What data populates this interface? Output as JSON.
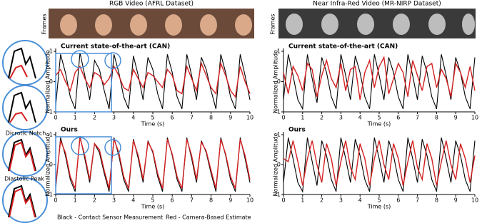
{
  "panels": [
    {
      "title": "RGB Video (AFRL Dataset)",
      "frames_label": "Frames"
    },
    {
      "title": "Near Infra-Red Video (MR-NIRP Dataset)",
      "frames_label": "Frames"
    }
  ],
  "annotations": [
    "Dicrotic Notch",
    "Diastolic Peak"
  ],
  "chart_data": [
    {
      "type": "line",
      "title": "Current state-of-the-art (CAN)",
      "xlabel": "Time (s)",
      "ylabel": "Normalized Amplitude",
      "x": [
        0,
        0.25,
        0.5,
        0.75,
        1,
        1.25,
        1.5,
        1.75,
        2,
        2.25,
        2.5,
        2.75,
        3,
        3.25,
        3.5,
        3.75,
        4,
        4.25,
        4.5,
        4.75,
        5,
        5.25,
        5.5,
        5.75,
        6,
        6.25,
        6.5,
        6.75,
        7,
        7.25,
        7.5,
        7.75,
        8,
        8.25,
        8.5,
        8.75,
        9,
        9.25,
        9.5,
        9.75,
        10
      ],
      "xlim": [
        0,
        10
      ],
      "xticks": [
        0,
        1,
        2,
        3,
        4,
        5,
        6,
        7,
        8,
        9,
        10
      ],
      "ylim": [
        -1,
        1
      ],
      "yticks": [
        -1,
        0,
        1
      ],
      "series": [
        {
          "name": "Black - Contact Sensor Measurement",
          "color": "#000000",
          "values": [
            -0.8,
            0.9,
            0.3,
            -0.5,
            -0.9,
            0.95,
            0.2,
            -0.6,
            0.7,
            0.4,
            -0.3,
            -0.9,
            0.9,
            0.3,
            -0.5,
            -0.9,
            0.85,
            0.2,
            -0.6,
            0.8,
            0.4,
            -0.4,
            -0.9,
            0.9,
            0.3,
            -0.5,
            -0.9,
            0.9,
            0.2,
            -0.6,
            0.8,
            0.4,
            -0.3,
            -0.9,
            0.9,
            0.3,
            -0.5,
            -0.9,
            0.9,
            0.2,
            -0.6
          ]
        },
        {
          "name": "Red - Camera-Based Estimate",
          "color": "#d42020",
          "values": [
            0.2,
            0.4,
            0.0,
            -0.3,
            0.3,
            0.5,
            0.1,
            -0.2,
            0.3,
            0.2,
            -0.1,
            0.1,
            0.5,
            0.2,
            -0.2,
            -0.3,
            0.4,
            0.1,
            -0.2,
            0.3,
            0.2,
            0.0,
            -0.2,
            0.4,
            0.2,
            -0.3,
            -0.4,
            0.5,
            0.1,
            -0.3,
            0.6,
            0.2,
            -0.2,
            -0.4,
            0.6,
            0.2,
            -0.3,
            -0.5,
            0.5,
            0.0,
            -0.4
          ]
        }
      ]
    },
    {
      "type": "line",
      "title": "Ours",
      "xlabel": "Time (s)",
      "ylabel": "Normalized Amplitude",
      "x": [
        0,
        0.25,
        0.5,
        0.75,
        1,
        1.25,
        1.5,
        1.75,
        2,
        2.25,
        2.5,
        2.75,
        3,
        3.25,
        3.5,
        3.75,
        4,
        4.25,
        4.5,
        4.75,
        5,
        5.25,
        5.5,
        5.75,
        6,
        6.25,
        6.5,
        6.75,
        7,
        7.25,
        7.5,
        7.75,
        8,
        8.25,
        8.5,
        8.75,
        9,
        9.25,
        9.5,
        9.75,
        10
      ],
      "xlim": [
        0,
        10
      ],
      "xticks": [
        0,
        1,
        2,
        3,
        4,
        5,
        6,
        7,
        8,
        9,
        10
      ],
      "ylim": [
        -1,
        1
      ],
      "yticks": [
        -1,
        0,
        1
      ],
      "series": [
        {
          "color": "#000000",
          "values": [
            -0.8,
            0.9,
            0.3,
            -0.5,
            -0.9,
            0.95,
            0.2,
            -0.6,
            0.7,
            0.4,
            -0.3,
            -0.9,
            0.9,
            0.3,
            -0.5,
            -0.9,
            0.85,
            0.2,
            -0.6,
            0.8,
            0.4,
            -0.4,
            -0.9,
            0.9,
            0.3,
            -0.5,
            -0.9,
            0.9,
            0.2,
            -0.6,
            0.8,
            0.4,
            -0.3,
            -0.9,
            0.9,
            0.3,
            -0.5,
            -0.9,
            0.9,
            0.2,
            -0.6
          ]
        },
        {
          "color": "#d42020",
          "values": [
            -0.7,
            0.8,
            0.4,
            -0.4,
            -0.8,
            0.9,
            0.3,
            -0.5,
            0.7,
            0.5,
            -0.2,
            -0.8,
            0.85,
            0.4,
            -0.4,
            -0.8,
            0.8,
            0.3,
            -0.5,
            0.75,
            0.45,
            -0.3,
            -0.8,
            0.85,
            0.35,
            -0.4,
            -0.8,
            0.85,
            0.3,
            -0.5,
            0.75,
            0.45,
            -0.2,
            -0.8,
            0.85,
            0.35,
            -0.4,
            -0.8,
            0.85,
            0.3,
            -0.5
          ]
        }
      ]
    },
    {
      "type": "line",
      "title": "Current state-of-the-art (CAN)",
      "xlabel": "Time (s)",
      "ylabel": "Normalized Amplitude",
      "x": [
        0,
        0.25,
        0.5,
        0.75,
        1,
        1.25,
        1.5,
        1.75,
        2,
        2.25,
        2.5,
        2.75,
        3,
        3.25,
        3.5,
        3.75,
        4,
        4.25,
        4.5,
        4.75,
        5,
        5.25,
        5.5,
        5.75,
        6,
        6.25,
        6.5,
        6.75,
        7,
        7.25,
        7.5,
        7.75,
        8,
        8.25,
        8.5,
        8.75,
        9,
        9.25,
        9.5,
        9.75,
        10
      ],
      "xlim": [
        0,
        10
      ],
      "xticks": [
        0,
        1,
        2,
        3,
        4,
        5,
        6,
        7,
        8,
        9,
        10
      ],
      "ylim": [
        -1,
        1
      ],
      "yticks": [
        -1,
        0,
        1
      ],
      "series": [
        {
          "color": "#000000",
          "values": [
            -0.6,
            0.9,
            0.2,
            -0.6,
            -0.9,
            0.9,
            0.1,
            -0.7,
            0.8,
            0.3,
            -0.5,
            -0.9,
            0.9,
            0.2,
            -0.6,
            0.85,
            0.3,
            -0.5,
            -0.9,
            0.9,
            0.2,
            -0.6,
            0.8,
            0.3,
            -0.5,
            -0.9,
            0.9,
            0.2,
            -0.6,
            0.85,
            0.3,
            -0.5,
            -0.9,
            0.9,
            0.2,
            -0.6,
            0.8,
            0.3,
            -0.5,
            -0.9,
            0.8
          ]
        },
        {
          "color": "#d42020",
          "values": [
            0.3,
            -0.4,
            0.5,
            0.2,
            -0.3,
            0.6,
            0.4,
            -0.5,
            0.2,
            0.7,
            0.1,
            -0.2,
            0.6,
            -0.3,
            0.4,
            0.5,
            -0.6,
            0.3,
            0.7,
            -0.2,
            0.5,
            0.8,
            -0.4,
            0.1,
            0.6,
            0.3,
            -0.5,
            0.7,
            0.2,
            -0.3,
            0.5,
            0.6,
            -0.2,
            0.4,
            0.1,
            -0.5,
            0.6,
            0.3,
            -0.2,
            0.5,
            -0.3
          ]
        }
      ]
    },
    {
      "type": "line",
      "title": "Ours",
      "xlabel": "Time (s)",
      "ylabel": "Normalized Amplitude",
      "x": [
        0,
        0.25,
        0.5,
        0.75,
        1,
        1.25,
        1.5,
        1.75,
        2,
        2.25,
        2.5,
        2.75,
        3,
        3.25,
        3.5,
        3.75,
        4,
        4.25,
        4.5,
        4.75,
        5,
        5.25,
        5.5,
        5.75,
        6,
        6.25,
        6.5,
        6.75,
        7,
        7.25,
        7.5,
        7.75,
        8,
        8.25,
        8.5,
        8.75,
        9,
        9.25,
        9.5,
        9.75,
        10
      ],
      "xlim": [
        0,
        10
      ],
      "xticks": [
        0,
        1,
        2,
        3,
        4,
        5,
        6,
        7,
        8,
        9,
        10
      ],
      "ylim": [
        -1,
        1
      ],
      "yticks": [
        -1,
        0,
        1
      ],
      "series": [
        {
          "color": "#000000",
          "values": [
            -0.6,
            0.9,
            0.2,
            -0.6,
            -0.9,
            0.9,
            0.1,
            -0.7,
            0.8,
            0.3,
            -0.5,
            -0.9,
            0.9,
            0.2,
            -0.6,
            0.85,
            0.3,
            -0.5,
            -0.9,
            0.9,
            0.2,
            -0.6,
            0.8,
            0.3,
            -0.5,
            -0.9,
            0.9,
            0.2,
            -0.6,
            0.85,
            0.3,
            -0.5,
            -0.9,
            0.9,
            0.2,
            -0.6,
            0.8,
            0.3,
            -0.5,
            -0.9,
            0.8
          ]
        },
        {
          "color": "#d42020",
          "values": [
            0.2,
            0.1,
            0.8,
            0.1,
            -0.7,
            0.2,
            0.8,
            0.0,
            -0.6,
            0.7,
            0.2,
            -0.7,
            0.1,
            0.8,
            -0.1,
            -0.5,
            0.7,
            0.2,
            -0.7,
            0.2,
            0.8,
            0.0,
            -0.5,
            0.7,
            0.2,
            -0.7,
            0.1,
            0.8,
            -0.1,
            -0.5,
            0.7,
            0.2,
            -0.7,
            0.1,
            0.8,
            0.0,
            -0.5,
            0.7,
            0.2,
            -0.6,
            0.3
          ]
        }
      ]
    }
  ]
}
